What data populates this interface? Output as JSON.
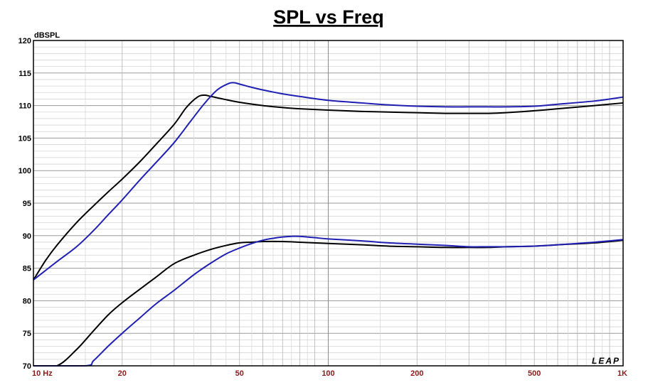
{
  "chart_data": {
    "type": "line",
    "title": "SPL vs Freq",
    "ylabel": "dBSPL",
    "xlabel": "",
    "x_scale": "log",
    "xlim": [
      10,
      1000
    ],
    "ylim": [
      70,
      120
    ],
    "grid": true,
    "legend": "none",
    "x_tick_labels": [
      {
        "value": 10,
        "label": "10  Hz"
      },
      {
        "value": 20,
        "label": "20"
      },
      {
        "value": 50,
        "label": "50"
      },
      {
        "value": 100,
        "label": "100"
      },
      {
        "value": 200,
        "label": "200"
      },
      {
        "value": 500,
        "label": "500"
      },
      {
        "value": 1000,
        "label": "1K"
      }
    ],
    "y_ticks": [
      70,
      75,
      80,
      85,
      90,
      95,
      100,
      105,
      110,
      115,
      120
    ],
    "logo": "LEAP",
    "series": [
      {
        "color": "#000000",
        "x": [
          10,
          11,
          12,
          14,
          16,
          18,
          20,
          23,
          26,
          30,
          33,
          36,
          38,
          40,
          44,
          50,
          60,
          70,
          80,
          100,
          130,
          160,
          200,
          250,
          300,
          350,
          400,
          500,
          600,
          800,
          1000
        ],
        "y": [
          83.2,
          86.2,
          88.5,
          92.0,
          94.6,
          96.8,
          98.7,
          101.4,
          104.0,
          107.1,
          109.7,
          111.3,
          111.6,
          111.4,
          111.0,
          110.5,
          110.0,
          109.7,
          109.5,
          109.3,
          109.1,
          109.0,
          108.9,
          108.8,
          108.8,
          108.8,
          108.9,
          109.2,
          109.5,
          110.0,
          110.4
        ]
      },
      {
        "color": "#1f1fb4",
        "x": [
          10,
          12,
          14,
          16,
          18,
          20,
          23,
          26,
          30,
          34,
          38,
          42,
          46,
          48,
          50,
          55,
          60,
          70,
          80,
          100,
          130,
          160,
          200,
          250,
          300,
          350,
          400,
          500,
          600,
          800,
          1000
        ],
        "y": [
          83.2,
          86.0,
          88.3,
          90.8,
          93.3,
          95.5,
          98.6,
          101.2,
          104.3,
          107.5,
          110.3,
          112.4,
          113.4,
          113.5,
          113.3,
          112.8,
          112.4,
          111.8,
          111.4,
          110.8,
          110.4,
          110.1,
          109.9,
          109.8,
          109.8,
          109.8,
          109.8,
          109.9,
          110.2,
          110.7,
          111.3
        ]
      },
      {
        "color": "#000000",
        "x": [
          10,
          12,
          14,
          16,
          18,
          20,
          23,
          26,
          30,
          35,
          40,
          45,
          50,
          55,
          60,
          70,
          80,
          100,
          130,
          160,
          200,
          250,
          300,
          350,
          400,
          500,
          600,
          800,
          1000
        ],
        "y": [
          70,
          70,
          72.5,
          75.4,
          77.9,
          79.7,
          81.8,
          83.6,
          85.7,
          87.0,
          87.9,
          88.5,
          88.9,
          89.0,
          89.1,
          89.1,
          89.0,
          88.8,
          88.6,
          88.4,
          88.3,
          88.2,
          88.2,
          88.2,
          88.3,
          88.4,
          88.6,
          88.9,
          89.3
        ]
      },
      {
        "color": "#1f1fb4",
        "x": [
          10,
          15,
          16,
          18,
          20,
          23,
          26,
          30,
          35,
          40,
          45,
          50,
          55,
          60,
          65,
          70,
          75,
          80,
          90,
          100,
          130,
          160,
          200,
          250,
          300,
          350,
          400,
          500,
          600,
          800,
          1000
        ],
        "y": [
          70,
          70,
          70.8,
          73.1,
          75.0,
          77.4,
          79.5,
          81.6,
          84.0,
          85.8,
          87.2,
          88.1,
          88.8,
          89.3,
          89.6,
          89.8,
          89.9,
          89.9,
          89.7,
          89.5,
          89.2,
          88.9,
          88.7,
          88.5,
          88.3,
          88.3,
          88.3,
          88.4,
          88.6,
          89.0,
          89.4
        ]
      }
    ]
  }
}
